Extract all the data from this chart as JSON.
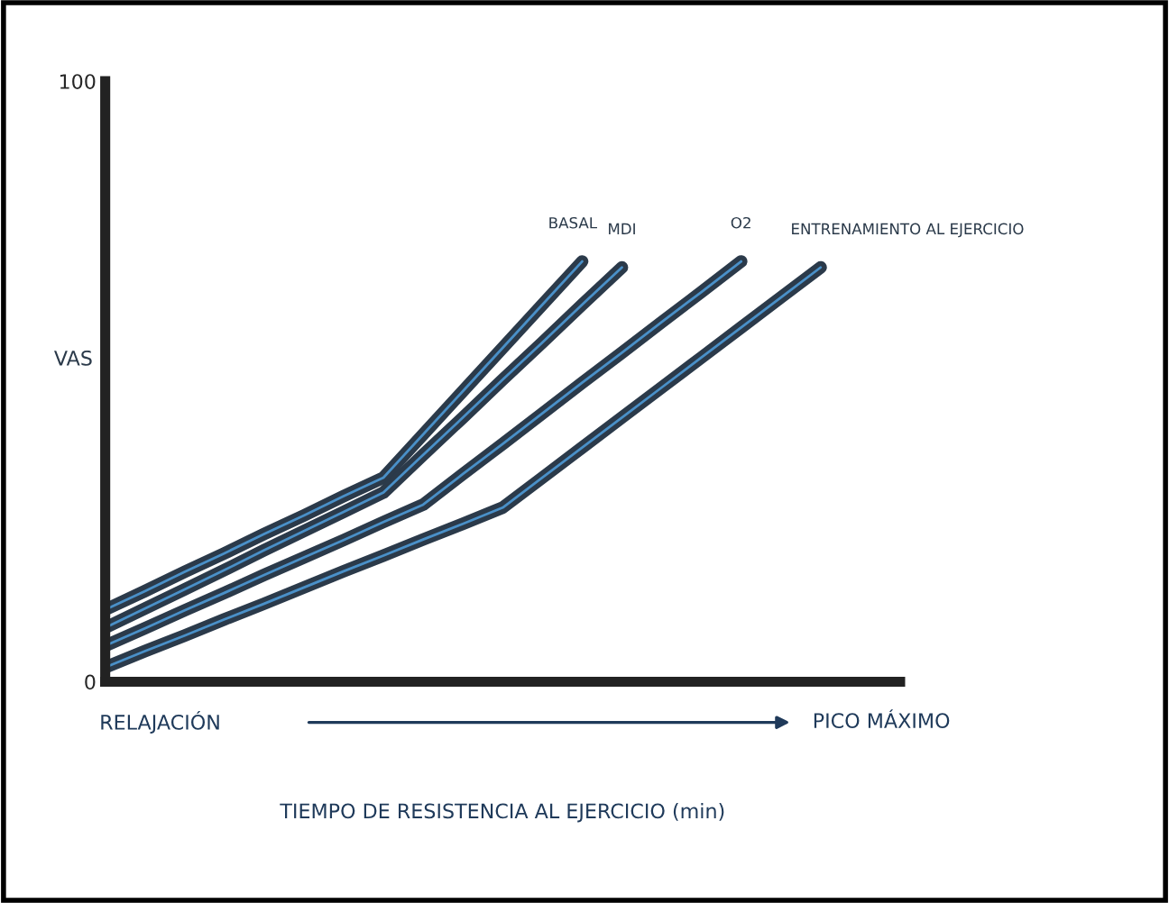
{
  "chart_data": {
    "type": "line",
    "ylabel": "VAS",
    "categories": [
      null,
      null,
      null,
      null,
      null,
      null,
      null,
      null,
      null,
      null,
      null,
      null,
      null,
      null,
      null,
      null,
      null,
      null,
      null,
      null,
      null
    ],
    "ylim": [
      0,
      100
    ],
    "yticks": [
      0,
      100
    ],
    "tick_labels": "y",
    "grid": false,
    "legend": false,
    "marker": "none",
    "line_style": "solid",
    "series": [
      {
        "name": "BASAL",
        "color": "#2b3a4a",
        "values": [
          12,
          15.1,
          18.3,
          21.4,
          24.6,
          27.7,
          30.9,
          34,
          41.2,
          48.4,
          55.6,
          62.8,
          70,
          null,
          null,
          null,
          null,
          null,
          null,
          null,
          null
        ]
      },
      {
        "name": "MDI",
        "color": "#2b3a4a",
        "values": [
          9,
          12.2,
          15.4,
          18.6,
          21.9,
          25.1,
          28.3,
          31.5,
          37.8,
          44,
          50.3,
          56.5,
          62.8,
          69,
          null,
          null,
          null,
          null,
          null,
          null,
          null
        ]
      },
      {
        "name": "O2",
        "color": "#2b3a4a",
        "values": [
          6,
          8.9,
          11.9,
          14.8,
          17.8,
          20.7,
          23.6,
          26.6,
          29.5,
          34.6,
          39.6,
          44.7,
          49.8,
          54.8,
          59.9,
          64.9,
          70,
          null,
          null,
          null,
          null
        ]
      },
      {
        "name": "ENTRENAMIENTO AL EJERCICIO",
        "color": "#2b3a4a",
        "values": [
          2.4,
          5.1,
          7.7,
          10.4,
          13,
          15.7,
          18.4,
          21,
          23.7,
          26.3,
          29,
          34,
          39,
          44,
          49,
          54,
          59,
          64,
          69,
          null,
          null
        ]
      }
    ],
    "annotations": [
      "RELAJACIÓN",
      "PICO MÁXIMO",
      "TIEMPO DE RESISTENCIA AL EJERCICIO (min)"
    ]
  }
}
